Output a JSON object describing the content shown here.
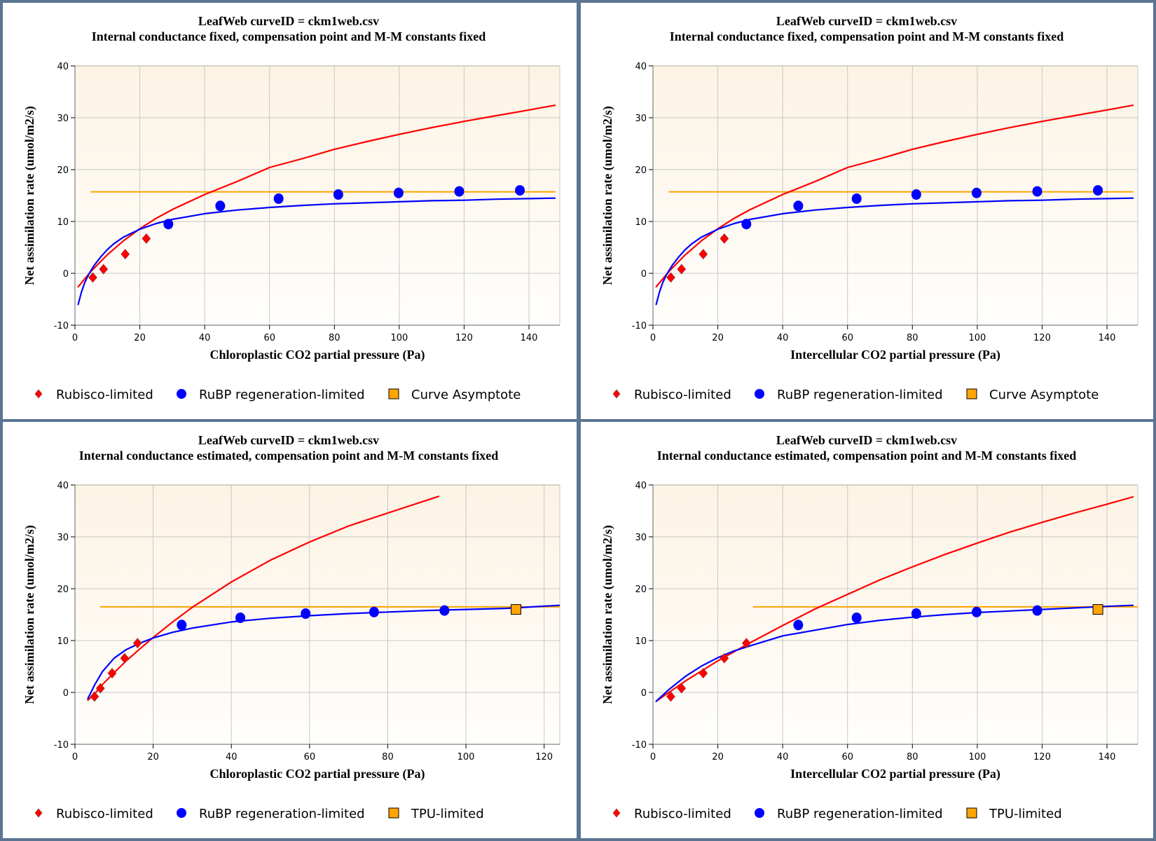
{
  "colors": {
    "rubisco": "#ff0000",
    "rubp": "#0000ff",
    "asymptote": "#ffa500",
    "plot_bg_top": "#fcf3e4",
    "plot_bg_bottom": "#fffefc",
    "grid": "#c8c8c8",
    "border": "#5b7593"
  },
  "chart_data": [
    {
      "type": "scatter",
      "title": "LeafWeb curveID = ckm1web.csv",
      "subtitle": "Internal conductance fixed, compensation point and M-M constants fixed",
      "xlabel": "Chloroplastic CO2 partial pressure (Pa)",
      "ylabel": "Net assimilation rate (umol/m2/s)",
      "xlim": [
        0,
        149.5
      ],
      "ylim": [
        -10,
        40
      ],
      "xticks": [
        0,
        20,
        40,
        60,
        80,
        100,
        120,
        140
      ],
      "yticks": [
        -10,
        0,
        10,
        20,
        30,
        40
      ],
      "grid": true,
      "legend_position": "bottom",
      "legend": [
        {
          "label": "Rubisco-limited",
          "marker": "diamond",
          "color": "#ff0000"
        },
        {
          "label": "RuBP regeneration-limited",
          "marker": "circle",
          "color": "#0000ff"
        },
        {
          "label": "Curve Asymptote",
          "marker": "square",
          "color": "#ffa500"
        }
      ],
      "series": [
        {
          "name": "Rubisco-limited points",
          "kind": "points",
          "marker": "diamond",
          "color": "#ff0000",
          "x": [
            5.5,
            8.8,
            15.5,
            22.0
          ],
          "y": [
            -0.8,
            0.8,
            3.7,
            6.7
          ]
        },
        {
          "name": "RuBP regeneration-limited points",
          "kind": "points",
          "marker": "circle",
          "color": "#0000ff",
          "x": [
            28.8,
            44.8,
            62.8,
            81.2,
            99.8,
            118.5,
            137.2
          ],
          "y": [
            9.5,
            13.0,
            14.4,
            15.2,
            15.5,
            15.8,
            16.0
          ]
        },
        {
          "name": "Rubisco-limited fit",
          "kind": "curve",
          "color": "#ff0000",
          "x": [
            1,
            5,
            10,
            15,
            20,
            25,
            30,
            40,
            50,
            60,
            70,
            80,
            90,
            100,
            110,
            120,
            130,
            140,
            148
          ],
          "y": [
            -2.6,
            0.4,
            3.6,
            6.3,
            8.6,
            10.6,
            12.3,
            15.2,
            17.7,
            20.4,
            22.1,
            23.9,
            25.4,
            26.8,
            28.1,
            29.3,
            30.4,
            31.5,
            32.4
          ]
        },
        {
          "name": "RuBP regeneration-limited fit",
          "kind": "curve",
          "color": "#0000ff",
          "x": [
            1,
            2,
            3,
            4,
            5,
            6,
            8,
            10,
            12,
            15,
            20,
            25,
            30,
            40,
            50,
            60,
            70,
            80,
            90,
            100,
            110,
            120,
            130,
            140,
            148
          ],
          "y": [
            -6.0,
            -3.6,
            -1.8,
            -0.5,
            0.6,
            1.6,
            3.2,
            4.6,
            5.7,
            7.0,
            8.5,
            9.6,
            10.4,
            11.5,
            12.2,
            12.7,
            13.1,
            13.4,
            13.6,
            13.8,
            14.0,
            14.1,
            14.3,
            14.4,
            14.5
          ]
        },
        {
          "name": "Curve Asymptote",
          "kind": "hline",
          "color": "#ffa500",
          "x": [
            5,
            148
          ],
          "y": [
            15.7,
            15.7
          ]
        }
      ]
    },
    {
      "type": "scatter",
      "title": "LeafWeb curveID = ckm1web.csv",
      "subtitle": "Internal conductance fixed, compensation point and M-M constants fixed",
      "xlabel": "Intercellular CO2 partial pressure (Pa)",
      "ylabel": "Net assimilation rate (umol/m2/s)",
      "xlim": [
        0,
        149.5
      ],
      "ylim": [
        -10,
        40
      ],
      "xticks": [
        0,
        20,
        40,
        60,
        80,
        100,
        120,
        140
      ],
      "yticks": [
        -10,
        0,
        10,
        20,
        30,
        40
      ],
      "grid": true,
      "legend_position": "bottom",
      "legend": [
        {
          "label": "Rubisco-limited",
          "marker": "diamond",
          "color": "#ff0000"
        },
        {
          "label": "RuBP regeneration-limited",
          "marker": "circle",
          "color": "#0000ff"
        },
        {
          "label": "Curve Asymptote",
          "marker": "square",
          "color": "#ffa500"
        }
      ],
      "series": [
        {
          "name": "Rubisco-limited points",
          "kind": "points",
          "marker": "diamond",
          "color": "#ff0000",
          "x": [
            5.5,
            8.8,
            15.5,
            22.0
          ],
          "y": [
            -0.8,
            0.8,
            3.7,
            6.7
          ]
        },
        {
          "name": "RuBP regeneration-limited points",
          "kind": "points",
          "marker": "circle",
          "color": "#0000ff",
          "x": [
            28.8,
            44.8,
            62.8,
            81.2,
            99.8,
            118.5,
            137.2
          ],
          "y": [
            9.5,
            13.0,
            14.4,
            15.2,
            15.5,
            15.8,
            16.0
          ]
        },
        {
          "name": "Rubisco-limited fit",
          "kind": "curve",
          "color": "#ff0000",
          "x": [
            1,
            5,
            10,
            15,
            20,
            25,
            30,
            40,
            50,
            60,
            70,
            80,
            90,
            100,
            110,
            120,
            130,
            140,
            148
          ],
          "y": [
            -2.6,
            0.4,
            3.6,
            6.3,
            8.6,
            10.6,
            12.3,
            15.2,
            17.7,
            20.4,
            22.1,
            23.9,
            25.4,
            26.8,
            28.1,
            29.3,
            30.4,
            31.5,
            32.4
          ]
        },
        {
          "name": "RuBP regeneration-limited fit",
          "kind": "curve",
          "color": "#0000ff",
          "x": [
            1,
            2,
            3,
            4,
            5,
            6,
            8,
            10,
            12,
            15,
            20,
            25,
            30,
            40,
            50,
            60,
            70,
            80,
            90,
            100,
            110,
            120,
            130,
            140,
            148
          ],
          "y": [
            -6.0,
            -3.6,
            -1.8,
            -0.5,
            0.6,
            1.6,
            3.2,
            4.6,
            5.7,
            7.0,
            8.5,
            9.6,
            10.4,
            11.5,
            12.2,
            12.7,
            13.1,
            13.4,
            13.6,
            13.8,
            14.0,
            14.1,
            14.3,
            14.4,
            14.5
          ]
        },
        {
          "name": "Curve Asymptote",
          "kind": "hline",
          "color": "#ffa500",
          "x": [
            5,
            148
          ],
          "y": [
            15.7,
            15.7
          ]
        }
      ]
    },
    {
      "type": "scatter",
      "title": "LeafWeb curveID = ckm1web.csv",
      "subtitle": "Internal conductance estimated, compensation point and M-M constants fixed",
      "xlabel": "Chloroplastic CO2 partial pressure (Pa)",
      "ylabel": "Net assimilation rate (umol/m2/s)",
      "xlim": [
        0,
        124
      ],
      "ylim": [
        -10,
        40
      ],
      "xticks": [
        0,
        20,
        40,
        60,
        80,
        100,
        120
      ],
      "yticks": [
        -10,
        0,
        10,
        20,
        30,
        40
      ],
      "grid": true,
      "legend_position": "bottom",
      "legend": [
        {
          "label": "Rubisco-limited",
          "marker": "diamond",
          "color": "#ff0000"
        },
        {
          "label": "RuBP regeneration-limited",
          "marker": "circle",
          "color": "#0000ff"
        },
        {
          "label": "TPU-limited",
          "marker": "square",
          "color": "#ffa500"
        }
      ],
      "series": [
        {
          "name": "Rubisco-limited points",
          "kind": "points",
          "marker": "diamond",
          "color": "#ff0000",
          "x": [
            5.0,
            6.5,
            9.5,
            12.7,
            16.0
          ],
          "y": [
            -0.8,
            0.8,
            3.7,
            6.6,
            9.5
          ]
        },
        {
          "name": "RuBP regeneration-limited points",
          "kind": "points",
          "marker": "circle",
          "color": "#0000ff",
          "x": [
            27.3,
            42.3,
            59.0,
            76.5,
            94.5
          ],
          "y": [
            13.0,
            14.4,
            15.2,
            15.5,
            15.8
          ]
        },
        {
          "name": "TPU-limited points",
          "kind": "points",
          "marker": "square",
          "color": "#ffa500",
          "x": [
            112.8
          ],
          "y": [
            16.0
          ]
        },
        {
          "name": "Rubisco-limited fit",
          "kind": "curve",
          "color": "#ff0000",
          "x": [
            3.3,
            5,
            7,
            10,
            13,
            16,
            20,
            25,
            30,
            40,
            50,
            60,
            70,
            80,
            93
          ],
          "y": [
            -1.5,
            -0.3,
            1.5,
            3.8,
            6.0,
            8.0,
            10.6,
            13.6,
            16.4,
            21.3,
            25.5,
            29.0,
            32.1,
            34.6,
            37.8
          ]
        },
        {
          "name": "RuBP regeneration-limited fit",
          "kind": "curve",
          "color": "#0000ff",
          "x": [
            3.3,
            5,
            7,
            10,
            13,
            16,
            20,
            25,
            30,
            40,
            50,
            60,
            70,
            80,
            90,
            100,
            110,
            124
          ],
          "y": [
            -1.2,
            1.4,
            4.0,
            6.6,
            8.2,
            9.3,
            10.5,
            11.6,
            12.4,
            13.6,
            14.3,
            14.8,
            15.2,
            15.5,
            15.8,
            16.0,
            16.2,
            16.8
          ]
        },
        {
          "name": "TPU asymptote",
          "kind": "hline",
          "color": "#ffa500",
          "x": [
            6.5,
            124
          ],
          "y": [
            16.5,
            16.5
          ]
        }
      ]
    },
    {
      "type": "scatter",
      "title": "LeafWeb curveID = ckm1web.csv",
      "subtitle": "Internal conductance estimated, compensation point and M-M constants fixed",
      "xlabel": "Intercellular CO2 partial pressure (Pa)",
      "ylabel": "Net assimilation rate (umol/m2/s)",
      "xlim": [
        0,
        149.5
      ],
      "ylim": [
        -10,
        40
      ],
      "xticks": [
        0,
        20,
        40,
        60,
        80,
        100,
        120,
        140
      ],
      "yticks": [
        -10,
        0,
        10,
        20,
        30,
        40
      ],
      "grid": true,
      "legend_position": "bottom",
      "legend": [
        {
          "label": "Rubisco-limited",
          "marker": "diamond",
          "color": "#ff0000"
        },
        {
          "label": "RuBP regeneration-limited",
          "marker": "circle",
          "color": "#0000ff"
        },
        {
          "label": "TPU-limited",
          "marker": "square",
          "color": "#ffa500"
        }
      ],
      "series": [
        {
          "name": "Rubisco-limited points",
          "kind": "points",
          "marker": "diamond",
          "color": "#ff0000",
          "x": [
            5.5,
            8.8,
            15.5,
            22.0,
            28.8
          ],
          "y": [
            -0.8,
            0.8,
            3.7,
            6.6,
            9.5
          ]
        },
        {
          "name": "RuBP regeneration-limited points",
          "kind": "points",
          "marker": "circle",
          "color": "#0000ff",
          "x": [
            44.8,
            62.8,
            81.2,
            99.8,
            118.5
          ],
          "y": [
            13.0,
            14.4,
            15.2,
            15.5,
            15.8
          ]
        },
        {
          "name": "TPU-limited points",
          "kind": "points",
          "marker": "square",
          "color": "#ffa500",
          "x": [
            137.2
          ],
          "y": [
            16.0
          ]
        },
        {
          "name": "Rubisco-limited fit",
          "kind": "curve",
          "color": "#ff0000",
          "x": [
            1,
            10,
            20,
            30,
            40,
            50,
            60,
            70,
            80,
            90,
            100,
            110,
            120,
            130,
            140,
            148
          ],
          "y": [
            -1.7,
            2.2,
            6.1,
            9.6,
            12.9,
            16.1,
            18.9,
            21.7,
            24.2,
            26.6,
            28.8,
            30.9,
            32.8,
            34.6,
            36.3,
            37.7
          ]
        },
        {
          "name": "RuBP regeneration-limited fit",
          "kind": "curve",
          "color": "#0000ff",
          "x": [
            1,
            5,
            10,
            15,
            20,
            25,
            30,
            40,
            50,
            60,
            70,
            80,
            90,
            100,
            110,
            120,
            130,
            140,
            148
          ],
          "y": [
            -1.7,
            0.6,
            3.1,
            5.1,
            6.7,
            8.0,
            9.0,
            10.9,
            12.0,
            13.1,
            13.9,
            14.5,
            15.0,
            15.4,
            15.7,
            16.0,
            16.3,
            16.6,
            16.8
          ]
        },
        {
          "name": "TPU asymptote",
          "kind": "hline",
          "color": "#ffa500",
          "x": [
            31,
            149.5
          ],
          "y": [
            16.5,
            16.5
          ]
        }
      ]
    }
  ]
}
